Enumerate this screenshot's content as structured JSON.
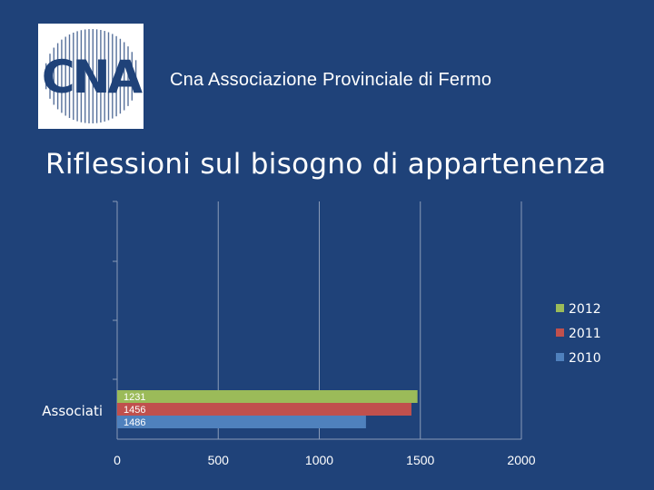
{
  "header": {
    "logo_text": "CNA",
    "org_title": "Cna Associazione Provinciale di Fermo"
  },
  "slide": {
    "title": "Riflessioni sul bisogno di appartenenza"
  },
  "colors": {
    "background": "#1f4279",
    "series_2012": "#9bbb59",
    "series_2011": "#c0504d",
    "series_2010": "#4f81bd",
    "gridline": "#8a9bb8"
  },
  "chart_data": {
    "type": "bar",
    "orientation": "horizontal",
    "categories": [
      "Associati"
    ],
    "xlim": [
      0,
      2000
    ],
    "xticks": [
      0,
      500,
      1000,
      1500,
      2000
    ],
    "grid": true,
    "legend_position": "right",
    "series": [
      {
        "name": "2012",
        "values": [
          1486
        ],
        "color": "#9bbb59"
      },
      {
        "name": "2011",
        "values": [
          1456
        ],
        "color": "#c0504d"
      },
      {
        "name": "2010",
        "values": [
          1231
        ],
        "color": "#4f81bd"
      }
    ],
    "data_labels": [
      "1231",
      "1456",
      "1486"
    ]
  }
}
